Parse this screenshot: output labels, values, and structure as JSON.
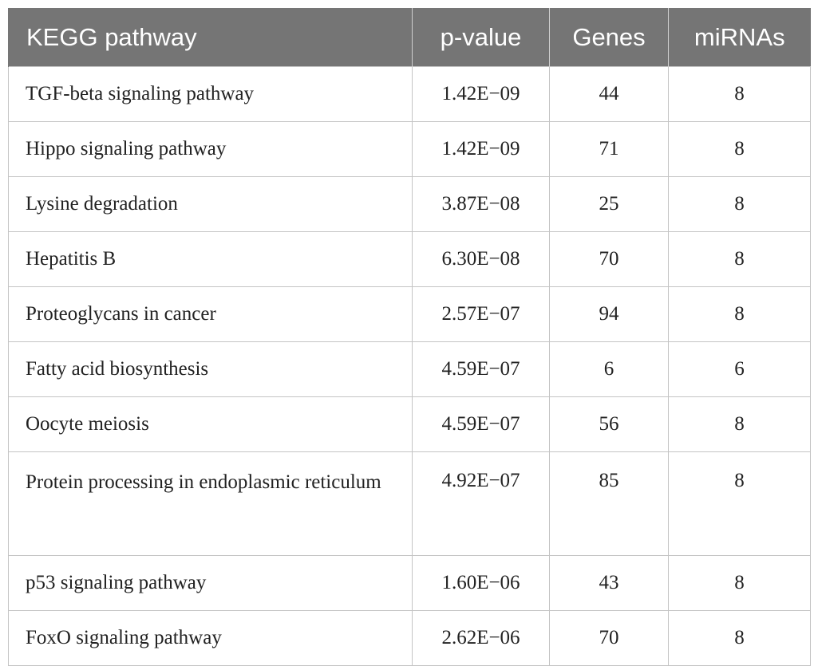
{
  "table": {
    "headers": [
      "KEGG pathway",
      "p-value",
      "Genes",
      "miRNAs"
    ],
    "rows": [
      {
        "pathway": "TGF-beta signaling pathway",
        "p_value": "1.42E−09",
        "genes": "44",
        "mirnas": "8"
      },
      {
        "pathway": "Hippo signaling pathway",
        "p_value": "1.42E−09",
        "genes": "71",
        "mirnas": "8"
      },
      {
        "pathway": "Lysine degradation",
        "p_value": "3.87E−08",
        "genes": "25",
        "mirnas": "8"
      },
      {
        "pathway": "Hepatitis B",
        "p_value": "6.30E−08",
        "genes": "70",
        "mirnas": "8"
      },
      {
        "pathway": "Proteoglycans in cancer",
        "p_value": "2.57E−07",
        "genes": "94",
        "mirnas": "8"
      },
      {
        "pathway": "Fatty acid biosynthesis",
        "p_value": "4.59E−07",
        "genes": "6",
        "mirnas": "6"
      },
      {
        "pathway": "Oocyte meiosis",
        "p_value": "4.59E−07",
        "genes": "56",
        "mirnas": "8"
      },
      {
        "pathway": "Protein processing in endoplasmic reticulum",
        "p_value": "4.92E−07",
        "genes": "85",
        "mirnas": "8"
      },
      {
        "pathway": "p53 signaling pathway",
        "p_value": "1.60E−06",
        "genes": "43",
        "mirnas": "8"
      },
      {
        "pathway": "FoxO signaling pathway",
        "p_value": "2.62E−06",
        "genes": "70",
        "mirnas": "8"
      }
    ]
  }
}
